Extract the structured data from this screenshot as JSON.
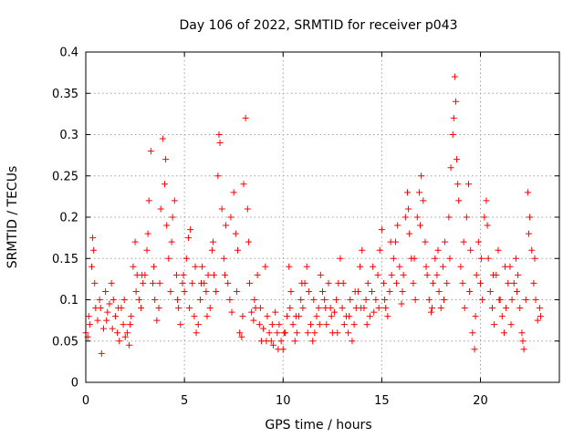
{
  "chart_data": {
    "type": "scatter",
    "title": "Day 106 of 2022, SRMTID for receiver p043",
    "xlabel": "GPS time / hours",
    "ylabel": "SRMTID / TECUs",
    "xlim": [
      0,
      24
    ],
    "ylim": [
      0,
      0.4
    ],
    "x_ticks": [
      0,
      5,
      10,
      15,
      20
    ],
    "x_tick_labels": [
      "0",
      "5",
      "10",
      "15",
      "20"
    ],
    "y_ticks": [
      0,
      0.05,
      0.1,
      0.15,
      0.2,
      0.25,
      0.3,
      0.35,
      0.4
    ],
    "y_tick_labels": [
      "0",
      "0.05",
      "0.1",
      "0.15",
      "0.2",
      "0.25",
      "0.3",
      "0.35",
      "0.4"
    ],
    "grid": true,
    "marker": "+",
    "color": "#ff0000",
    "series": [
      {
        "name": "SRMTID",
        "points": [
          [
            0.0,
            0.06
          ],
          [
            0.1,
            0.055
          ],
          [
            0.2,
            0.07
          ],
          [
            0.3,
            0.14
          ],
          [
            0.35,
            0.175
          ],
          [
            0.4,
            0.16
          ],
          [
            0.5,
            0.09
          ],
          [
            0.6,
            0.075
          ],
          [
            0.7,
            0.1
          ],
          [
            0.8,
            0.035
          ],
          [
            0.9,
            0.065
          ],
          [
            1.0,
            0.11
          ],
          [
            1.1,
            0.085
          ],
          [
            1.2,
            0.095
          ],
          [
            1.3,
            0.12
          ],
          [
            1.4,
            0.1
          ],
          [
            1.5,
            0.08
          ],
          [
            1.6,
            0.06
          ],
          [
            1.7,
            0.05
          ],
          [
            1.8,
            0.09
          ],
          [
            1.9,
            0.07
          ],
          [
            2.0,
            0.055
          ],
          [
            2.1,
            0.06
          ],
          [
            2.2,
            0.045
          ],
          [
            2.3,
            0.08
          ],
          [
            2.4,
            0.14
          ],
          [
            2.5,
            0.17
          ],
          [
            2.6,
            0.13
          ],
          [
            2.7,
            0.1
          ],
          [
            2.8,
            0.09
          ],
          [
            2.9,
            0.12
          ],
          [
            3.0,
            0.13
          ],
          [
            3.1,
            0.16
          ],
          [
            3.2,
            0.22
          ],
          [
            3.3,
            0.28
          ],
          [
            3.4,
            0.12
          ],
          [
            3.5,
            0.1
          ],
          [
            3.6,
            0.075
          ],
          [
            3.7,
            0.09
          ],
          [
            3.8,
            0.21
          ],
          [
            3.9,
            0.295
          ],
          [
            4.0,
            0.24
          ],
          [
            4.1,
            0.19
          ],
          [
            4.2,
            0.15
          ],
          [
            4.3,
            0.11
          ],
          [
            4.4,
            0.2
          ],
          [
            4.5,
            0.22
          ],
          [
            4.6,
            0.13
          ],
          [
            4.7,
            0.09
          ],
          [
            4.8,
            0.07
          ],
          [
            4.9,
            0.12
          ],
          [
            5.0,
            0.11
          ],
          [
            5.1,
            0.15
          ],
          [
            5.2,
            0.175
          ],
          [
            5.3,
            0.185
          ],
          [
            5.4,
            0.12
          ],
          [
            5.5,
            0.08
          ],
          [
            5.6,
            0.06
          ],
          [
            5.7,
            0.07
          ],
          [
            5.8,
            0.1
          ],
          [
            5.9,
            0.14
          ],
          [
            6.0,
            0.12
          ],
          [
            6.1,
            0.11
          ],
          [
            6.2,
            0.13
          ],
          [
            6.3,
            0.09
          ],
          [
            6.4,
            0.16
          ],
          [
            6.5,
            0.13
          ],
          [
            6.6,
            0.11
          ],
          [
            6.7,
            0.25
          ],
          [
            6.8,
            0.29
          ],
          [
            6.9,
            0.21
          ],
          [
            7.0,
            0.15
          ],
          [
            7.1,
            0.19
          ],
          [
            7.2,
            0.12
          ],
          [
            7.3,
            0.1
          ],
          [
            7.4,
            0.085
          ],
          [
            7.5,
            0.23
          ],
          [
            7.6,
            0.18
          ],
          [
            7.7,
            0.16
          ],
          [
            7.8,
            0.06
          ],
          [
            7.9,
            0.055
          ],
          [
            8.0,
            0.24
          ],
          [
            8.1,
            0.32
          ],
          [
            8.2,
            0.21
          ],
          [
            8.3,
            0.12
          ],
          [
            8.4,
            0.085
          ],
          [
            8.5,
            0.075
          ],
          [
            8.6,
            0.09
          ],
          [
            8.7,
            0.13
          ],
          [
            8.8,
            0.07
          ],
          [
            8.9,
            0.05
          ],
          [
            9.0,
            0.065
          ],
          [
            9.1,
            0.14
          ],
          [
            9.2,
            0.08
          ],
          [
            9.3,
            0.06
          ],
          [
            9.4,
            0.05
          ],
          [
            9.5,
            0.045
          ],
          [
            9.6,
            0.085
          ],
          [
            9.7,
            0.06
          ],
          [
            9.8,
            0.07
          ],
          [
            9.9,
            0.05
          ],
          [
            10.0,
            0.04
          ],
          [
            10.1,
            0.06
          ],
          [
            10.2,
            0.08
          ],
          [
            10.3,
            0.14
          ],
          [
            10.4,
            0.11
          ],
          [
            10.5,
            0.07
          ],
          [
            10.6,
            0.05
          ],
          [
            10.7,
            0.06
          ],
          [
            10.8,
            0.08
          ],
          [
            10.9,
            0.1
          ],
          [
            11.0,
            0.09
          ],
          [
            11.1,
            0.12
          ],
          [
            11.2,
            0.14
          ],
          [
            11.3,
            0.11
          ],
          [
            11.4,
            0.07
          ],
          [
            11.5,
            0.05
          ],
          [
            11.6,
            0.06
          ],
          [
            11.7,
            0.08
          ],
          [
            11.8,
            0.09
          ],
          [
            11.9,
            0.13
          ],
          [
            12.0,
            0.11
          ],
          [
            12.1,
            0.1
          ],
          [
            12.2,
            0.07
          ],
          [
            12.3,
            0.12
          ],
          [
            12.4,
            0.09
          ],
          [
            12.5,
            0.06
          ],
          [
            12.6,
            0.085
          ],
          [
            12.7,
            0.1
          ],
          [
            12.8,
            0.12
          ],
          [
            12.9,
            0.15
          ],
          [
            13.0,
            0.09
          ],
          [
            13.1,
            0.07
          ],
          [
            13.2,
            0.08
          ],
          [
            13.3,
            0.06
          ],
          [
            13.4,
            0.1
          ],
          [
            13.5,
            0.05
          ],
          [
            13.6,
            0.07
          ],
          [
            13.7,
            0.09
          ],
          [
            13.8,
            0.11
          ],
          [
            13.9,
            0.14
          ],
          [
            14.0,
            0.16
          ],
          [
            14.1,
            0.09
          ],
          [
            14.2,
            0.1
          ],
          [
            14.3,
            0.12
          ],
          [
            14.4,
            0.08
          ],
          [
            14.5,
            0.11
          ],
          [
            14.6,
            0.085
          ],
          [
            14.7,
            0.1
          ],
          [
            14.8,
            0.13
          ],
          [
            14.9,
            0.16
          ],
          [
            15.0,
            0.185
          ],
          [
            15.1,
            0.12
          ],
          [
            15.2,
            0.09
          ],
          [
            15.3,
            0.08
          ],
          [
            15.4,
            0.11
          ],
          [
            15.5,
            0.13
          ],
          [
            15.6,
            0.15
          ],
          [
            15.7,
            0.17
          ],
          [
            15.8,
            0.19
          ],
          [
            15.9,
            0.14
          ],
          [
            16.0,
            0.095
          ],
          [
            16.1,
            0.13
          ],
          [
            16.2,
            0.2
          ],
          [
            16.3,
            0.23
          ],
          [
            16.4,
            0.18
          ],
          [
            16.5,
            0.15
          ],
          [
            16.6,
            0.12
          ],
          [
            16.7,
            0.1
          ],
          [
            16.8,
            0.2
          ],
          [
            16.9,
            0.23
          ],
          [
            17.0,
            0.25
          ],
          [
            17.1,
            0.22
          ],
          [
            17.2,
            0.17
          ],
          [
            17.3,
            0.13
          ],
          [
            17.4,
            0.1
          ],
          [
            17.5,
            0.085
          ],
          [
            17.6,
            0.12
          ],
          [
            17.7,
            0.15
          ],
          [
            17.8,
            0.13
          ],
          [
            17.9,
            0.11
          ],
          [
            18.0,
            0.09
          ],
          [
            18.1,
            0.14
          ],
          [
            18.2,
            0.17
          ],
          [
            18.3,
            0.12
          ],
          [
            18.4,
            0.2
          ],
          [
            18.5,
            0.26
          ],
          [
            18.6,
            0.3
          ],
          [
            18.7,
            0.37
          ],
          [
            18.75,
            0.34
          ],
          [
            18.8,
            0.27
          ],
          [
            18.9,
            0.22
          ],
          [
            19.0,
            0.14
          ],
          [
            19.1,
            0.12
          ],
          [
            19.2,
            0.09
          ],
          [
            19.3,
            0.2
          ],
          [
            19.4,
            0.24
          ],
          [
            19.5,
            0.16
          ],
          [
            19.6,
            0.06
          ],
          [
            19.7,
            0.04
          ],
          [
            19.8,
            0.13
          ],
          [
            19.9,
            0.17
          ],
          [
            20.0,
            0.12
          ],
          [
            20.1,
            0.1
          ],
          [
            20.2,
            0.2
          ],
          [
            20.3,
            0.22
          ],
          [
            20.4,
            0.15
          ],
          [
            20.5,
            0.11
          ],
          [
            20.6,
            0.09
          ],
          [
            20.7,
            0.07
          ],
          [
            20.8,
            0.13
          ],
          [
            20.9,
            0.16
          ],
          [
            21.0,
            0.1
          ],
          [
            21.1,
            0.08
          ],
          [
            21.2,
            0.06
          ],
          [
            21.3,
            0.09
          ],
          [
            21.4,
            0.12
          ],
          [
            21.5,
            0.14
          ],
          [
            21.6,
            0.1
          ],
          [
            21.7,
            0.12
          ],
          [
            21.8,
            0.15
          ],
          [
            21.9,
            0.13
          ],
          [
            22.0,
            0.09
          ],
          [
            22.1,
            0.06
          ],
          [
            22.2,
            0.04
          ],
          [
            22.3,
            0.1
          ],
          [
            22.4,
            0.23
          ],
          [
            22.5,
            0.2
          ],
          [
            22.6,
            0.16
          ],
          [
            22.7,
            0.12
          ],
          [
            22.8,
            0.1
          ],
          [
            22.9,
            0.075
          ],
          [
            23.0,
            0.09
          ],
          [
            0.15,
            0.08
          ],
          [
            0.45,
            0.12
          ],
          [
            0.75,
            0.09
          ],
          [
            1.05,
            0.075
          ],
          [
            1.35,
            0.065
          ],
          [
            1.65,
            0.09
          ],
          [
            1.95,
            0.1
          ],
          [
            2.25,
            0.07
          ],
          [
            2.55,
            0.11
          ],
          [
            2.85,
            0.13
          ],
          [
            3.15,
            0.18
          ],
          [
            3.45,
            0.14
          ],
          [
            3.75,
            0.12
          ],
          [
            4.05,
            0.27
          ],
          [
            4.35,
            0.17
          ],
          [
            4.65,
            0.1
          ],
          [
            4.95,
            0.13
          ],
          [
            5.25,
            0.09
          ],
          [
            5.55,
            0.14
          ],
          [
            5.85,
            0.12
          ],
          [
            6.15,
            0.08
          ],
          [
            6.45,
            0.17
          ],
          [
            6.75,
            0.3
          ],
          [
            7.05,
            0.13
          ],
          [
            7.35,
            0.2
          ],
          [
            7.65,
            0.11
          ],
          [
            7.95,
            0.08
          ],
          [
            8.25,
            0.17
          ],
          [
            8.55,
            0.1
          ],
          [
            8.85,
            0.09
          ],
          [
            9.15,
            0.05
          ],
          [
            9.45,
            0.07
          ],
          [
            9.75,
            0.04
          ],
          [
            10.05,
            0.06
          ],
          [
            10.35,
            0.09
          ],
          [
            10.65,
            0.08
          ],
          [
            10.95,
            0.12
          ],
          [
            11.25,
            0.06
          ],
          [
            11.55,
            0.1
          ],
          [
            11.85,
            0.07
          ],
          [
            12.15,
            0.09
          ],
          [
            12.45,
            0.08
          ],
          [
            12.75,
            0.06
          ],
          [
            13.05,
            0.12
          ],
          [
            13.35,
            0.08
          ],
          [
            13.65,
            0.11
          ],
          [
            13.95,
            0.09
          ],
          [
            14.25,
            0.07
          ],
          [
            14.55,
            0.14
          ],
          [
            14.85,
            0.09
          ],
          [
            15.15,
            0.1
          ],
          [
            15.45,
            0.17
          ],
          [
            15.75,
            0.12
          ],
          [
            16.05,
            0.11
          ],
          [
            16.35,
            0.21
          ],
          [
            16.65,
            0.15
          ],
          [
            16.95,
            0.19
          ],
          [
            17.25,
            0.14
          ],
          [
            17.55,
            0.09
          ],
          [
            17.85,
            0.16
          ],
          [
            18.15,
            0.1
          ],
          [
            18.45,
            0.15
          ],
          [
            18.65,
            0.32
          ],
          [
            18.85,
            0.24
          ],
          [
            19.15,
            0.17
          ],
          [
            19.45,
            0.11
          ],
          [
            19.75,
            0.08
          ],
          [
            20.05,
            0.15
          ],
          [
            20.35,
            0.19
          ],
          [
            20.65,
            0.13
          ],
          [
            20.95,
            0.1
          ],
          [
            21.25,
            0.14
          ],
          [
            21.55,
            0.07
          ],
          [
            21.85,
            0.11
          ],
          [
            22.15,
            0.05
          ],
          [
            22.45,
            0.18
          ],
          [
            22.75,
            0.15
          ],
          [
            23.05,
            0.08
          ]
        ]
      }
    ]
  }
}
